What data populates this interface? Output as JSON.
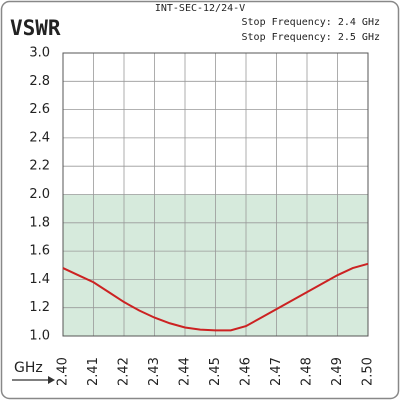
{
  "chart_data": {
    "type": "line",
    "top_label": "INT-SEC-12/24-V",
    "title": "VSWR",
    "annotations": [
      "Stop Frequency: 2.4 GHz",
      "Stop Frequency: 2.5 GHz"
    ],
    "x_label": "GHz",
    "x": [
      2.4,
      2.405,
      2.41,
      2.415,
      2.42,
      2.425,
      2.43,
      2.435,
      2.44,
      2.445,
      2.45,
      2.455,
      2.46,
      2.465,
      2.47,
      2.475,
      2.48,
      2.485,
      2.49,
      2.495,
      2.5
    ],
    "series": [
      {
        "name": "VSWR",
        "color": "#cc2222",
        "values": [
          1.48,
          1.43,
          1.38,
          1.31,
          1.24,
          1.18,
          1.13,
          1.09,
          1.06,
          1.045,
          1.04,
          1.04,
          1.07,
          1.13,
          1.19,
          1.25,
          1.31,
          1.37,
          1.43,
          1.48,
          1.51
        ]
      }
    ],
    "xlim": [
      2.4,
      2.5
    ],
    "xticks": [
      {
        "value": 2.4,
        "label": "2.40"
      },
      2.41,
      2.42,
      2.43,
      2.44,
      2.45,
      2.46,
      2.47,
      2.48,
      2.49,
      {
        "value": 2.5,
        "label": "2.50"
      }
    ],
    "ylim": [
      1,
      3
    ],
    "yticks": [
      {
        "value": 1,
        "label": "1.0"
      },
      1.2,
      1.4,
      1.6,
      1.8,
      {
        "value": 2,
        "label": "2.0"
      },
      2.2,
      2.4,
      2.6,
      2.8,
      {
        "value": 3,
        "label": "3.0"
      }
    ],
    "grid": true,
    "shaded_band": {
      "from": 1,
      "to": 2,
      "color": "#d6eadc"
    }
  }
}
